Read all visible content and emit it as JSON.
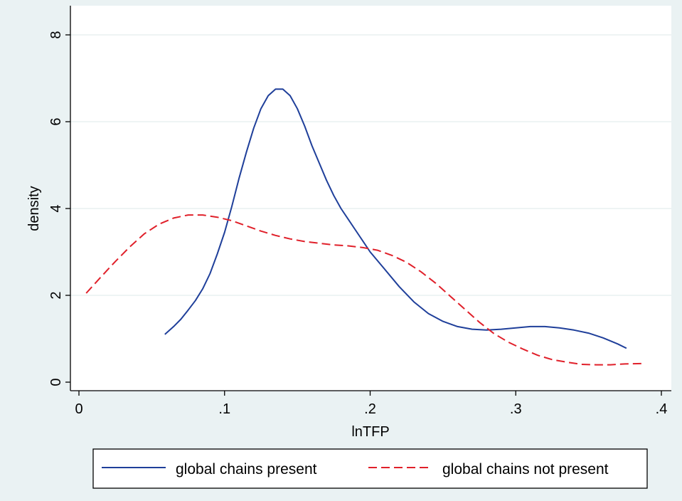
{
  "chart_data": {
    "type": "line",
    "xlabel": "lnTFP",
    "ylabel": "density",
    "xlim": [
      0,
      0.4
    ],
    "ylim": [
      0,
      8
    ],
    "x_ticks": [
      {
        "value": 0,
        "label": "0"
      },
      {
        "value": 0.1,
        "label": ".1"
      },
      {
        "value": 0.2,
        "label": ".2"
      },
      {
        "value": 0.3,
        "label": ".3"
      },
      {
        "value": 0.4,
        "label": ".4"
      }
    ],
    "y_ticks": [
      {
        "value": 0,
        "label": "0"
      },
      {
        "value": 2,
        "label": "2"
      },
      {
        "value": 4,
        "label": "4"
      },
      {
        "value": 6,
        "label": "6"
      },
      {
        "value": 8,
        "label": "8"
      }
    ],
    "grid": "horizontal",
    "legend_position": "bottom",
    "series": [
      {
        "name": "global chains present",
        "color": "#1f3f9a",
        "style": "solid",
        "x": [
          0.059,
          0.065,
          0.07,
          0.075,
          0.08,
          0.085,
          0.09,
          0.095,
          0.1,
          0.105,
          0.11,
          0.115,
          0.12,
          0.125,
          0.13,
          0.135,
          0.14,
          0.145,
          0.15,
          0.155,
          0.16,
          0.165,
          0.17,
          0.175,
          0.18,
          0.185,
          0.19,
          0.195,
          0.2,
          0.21,
          0.22,
          0.23,
          0.24,
          0.25,
          0.26,
          0.27,
          0.28,
          0.29,
          0.3,
          0.31,
          0.32,
          0.33,
          0.34,
          0.35,
          0.36,
          0.37,
          0.376
        ],
        "y": [
          1.1,
          1.28,
          1.45,
          1.66,
          1.88,
          2.15,
          2.5,
          2.95,
          3.45,
          4.05,
          4.7,
          5.3,
          5.85,
          6.3,
          6.6,
          6.75,
          6.75,
          6.6,
          6.3,
          5.9,
          5.45,
          5.05,
          4.65,
          4.3,
          4.0,
          3.75,
          3.5,
          3.25,
          3.0,
          2.6,
          2.2,
          1.85,
          1.58,
          1.4,
          1.28,
          1.22,
          1.2,
          1.22,
          1.25,
          1.28,
          1.28,
          1.25,
          1.2,
          1.13,
          1.02,
          0.88,
          0.78
        ]
      },
      {
        "name": "global chains not present",
        "color": "#e0202a",
        "style": "dashed",
        "x": [
          0.005,
          0.015,
          0.025,
          0.035,
          0.045,
          0.055,
          0.065,
          0.075,
          0.085,
          0.095,
          0.105,
          0.115,
          0.125,
          0.135,
          0.145,
          0.155,
          0.165,
          0.175,
          0.185,
          0.195,
          0.205,
          0.215,
          0.225,
          0.235,
          0.245,
          0.255,
          0.265,
          0.275,
          0.285,
          0.295,
          0.305,
          0.315,
          0.325,
          0.335,
          0.345,
          0.355,
          0.365,
          0.375,
          0.388
        ],
        "y": [
          2.05,
          2.42,
          2.78,
          3.12,
          3.42,
          3.64,
          3.78,
          3.85,
          3.85,
          3.8,
          3.72,
          3.6,
          3.48,
          3.38,
          3.3,
          3.24,
          3.2,
          3.16,
          3.14,
          3.1,
          3.04,
          2.92,
          2.76,
          2.54,
          2.28,
          1.98,
          1.68,
          1.38,
          1.12,
          0.92,
          0.76,
          0.62,
          0.52,
          0.46,
          0.41,
          0.4,
          0.4,
          0.42,
          0.43
        ]
      }
    ]
  }
}
